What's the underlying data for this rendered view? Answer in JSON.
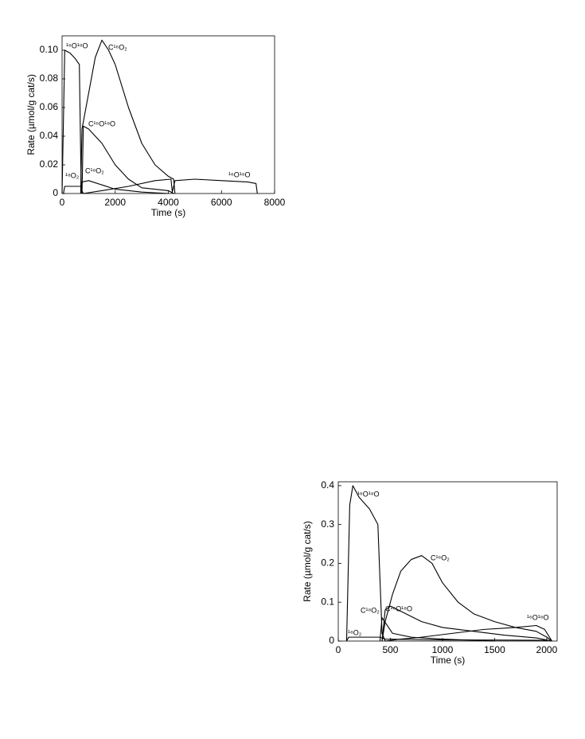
{
  "chart_data": [
    {
      "type": "line",
      "x_label": "Time (s)",
      "y_label": "Rate (µmol/g cat/s)",
      "xlim": [
        0,
        8000
      ],
      "xticks": [
        0,
        2000,
        4000,
        6000,
        8000
      ],
      "ylim": [
        0,
        0.11
      ],
      "yticks": [
        0,
        0.02,
        0.04,
        0.06,
        0.08,
        {
          "value": 0.1,
          "label": "0.10"
        }
      ],
      "series": [
        {
          "name": "¹⁶O¹⁸O",
          "color": "#000000",
          "x": [
            0,
            100,
            300,
            500,
            650,
            720,
            800
          ],
          "values": [
            0,
            0.1,
            0.098,
            0.094,
            0.09,
            0.003,
            0
          ]
        },
        {
          "name": "C¹⁶O₂",
          "color": "#000000",
          "x": [
            700,
            750,
            1000,
            1250,
            1500,
            1750,
            2000,
            2500,
            3000,
            3500,
            4000,
            4200,
            4250
          ],
          "values": [
            0,
            0.045,
            0.07,
            0.095,
            0.107,
            0.1,
            0.09,
            0.06,
            0.035,
            0.02,
            0.012,
            0.01,
            0
          ]
        },
        {
          "name": "C¹⁶O¹⁸O",
          "color": "#000000",
          "x": [
            750,
            800,
            1000,
            1500,
            2000,
            2500,
            3000,
            4000,
            4200
          ],
          "values": [
            0,
            0.047,
            0.045,
            0.035,
            0.02,
            0.01,
            0.004,
            0.002,
            0
          ]
        },
        {
          "name": "¹⁸O₂",
          "color": "#000000",
          "x": [
            50,
            100,
            400,
            700,
            750
          ],
          "values": [
            0,
            0.005,
            0.005,
            0.005,
            0
          ]
        },
        {
          "name": "C¹⁸O₂",
          "color": "#000000",
          "x": [
            700,
            750,
            1000,
            1500,
            2000,
            3000,
            4000
          ],
          "values": [
            0,
            0.008,
            0.009,
            0.006,
            0.003,
            0.001,
            0
          ]
        },
        {
          "name": "¹⁶O¹⁸O",
          "color": "#000000",
          "x": [
            800,
            1500,
            2500,
            3500,
            4100,
            4150,
            4250,
            5000,
            6000,
            7000,
            7300,
            7350
          ],
          "values": [
            0,
            0.002,
            0.005,
            0.009,
            0.01,
            0.001,
            0.009,
            0.01,
            0.009,
            0.008,
            0.007,
            0
          ]
        }
      ]
    },
    {
      "type": "line",
      "x_label": "Time (s)",
      "y_label": "Rate (µmol/g cat/s)",
      "xlim": [
        0,
        2100
      ],
      "xticks": [
        0,
        500,
        1000,
        1500,
        2000
      ],
      "ylim": [
        0,
        0.41
      ],
      "yticks": [
        0,
        0.1,
        0.2,
        0.3,
        0.4
      ],
      "series": [
        {
          "name": "¹⁶O¹⁸O",
          "color": "#000000",
          "x": [
            80,
            110,
            140,
            200,
            300,
            380,
            420,
            450
          ],
          "values": [
            0,
            0.35,
            0.4,
            0.37,
            0.34,
            0.3,
            0.02,
            0
          ]
        },
        {
          "name": "C¹⁶O₂",
          "color": "#000000",
          "x": [
            420,
            450,
            520,
            600,
            700,
            800,
            900,
            1000,
            1150,
            1300,
            1500,
            1700,
            1900,
            2000,
            2050
          ],
          "values": [
            0,
            0.05,
            0.12,
            0.18,
            0.21,
            0.22,
            0.2,
            0.15,
            0.1,
            0.07,
            0.05,
            0.035,
            0.025,
            0.01,
            0
          ]
        },
        {
          "name": "C¹⁶O¹⁸O",
          "color": "#000000",
          "x": [
            420,
            450,
            500,
            650,
            800,
            1000,
            1300,
            1600,
            1900,
            2050
          ],
          "values": [
            0,
            0.08,
            0.09,
            0.07,
            0.05,
            0.035,
            0.025,
            0.015,
            0.008,
            0
          ]
        },
        {
          "name": "C¹⁸O₂",
          "color": "#000000",
          "x": [
            400,
            420,
            520,
            700,
            1000,
            1500
          ],
          "values": [
            0,
            0.06,
            0.02,
            0.01,
            0.005,
            0
          ]
        },
        {
          "name": "¹⁸O₂",
          "color": "#000000",
          "x": [
            80,
            100,
            400,
            450,
            1000,
            2000
          ],
          "values": [
            0,
            0.01,
            0.01,
            0.005,
            0.003,
            0.002
          ]
        },
        {
          "name": "¹⁶O¹⁸O",
          "color": "#000000",
          "x": [
            450,
            600,
            800,
            1100,
            1400,
            1700,
            1900,
            1980,
            2050
          ],
          "values": [
            0,
            0.005,
            0.01,
            0.02,
            0.03,
            0.035,
            0.04,
            0.03,
            0
          ]
        }
      ]
    }
  ]
}
